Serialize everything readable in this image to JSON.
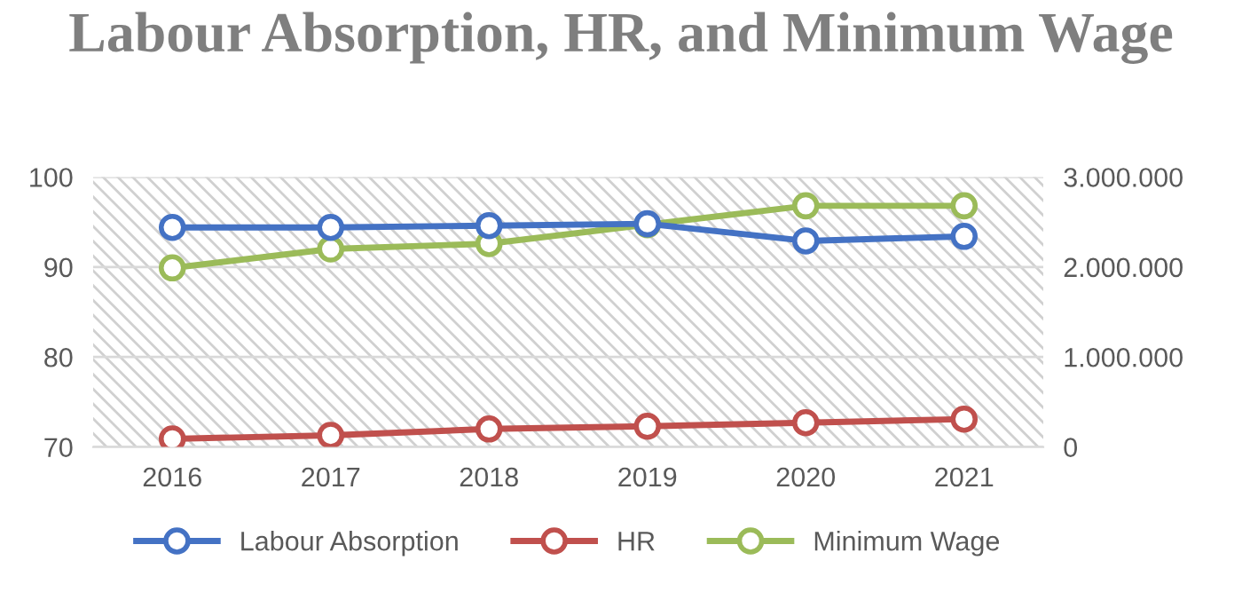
{
  "chart_data": {
    "type": "line",
    "title": "Labour Absorption, HR, and Minimum Wage",
    "categories": [
      "2016",
      "2017",
      "2018",
      "2019",
      "2020",
      "2021"
    ],
    "series": [
      {
        "name": "Labour Absorption",
        "color": "#4472c4",
        "values": [
          94.4,
          94.4,
          94.6,
          94.8,
          92.9,
          93.4
        ]
      },
      {
        "name": "HR",
        "color": "#c0504d",
        "values": [
          70.9,
          71.3,
          72.0,
          72.3,
          72.7,
          73.1
        ]
      },
      {
        "name": "Minimum Wage",
        "color": "#9bbb59",
        "axis": "y2",
        "values": [
          1990000,
          2200000,
          2260000,
          2470000,
          2680000,
          2680000
        ]
      }
    ],
    "ylim": [
      70,
      100
    ],
    "yticks": [
      70,
      80,
      90,
      100
    ],
    "y2lim": [
      0,
      3000000
    ],
    "y2ticks": [
      {
        "value": 0,
        "label": "0"
      },
      {
        "value": 1000000,
        "label": "1.000.000"
      },
      {
        "value": 2000000,
        "label": "2.000.000"
      },
      {
        "value": 3000000,
        "label": "3.000.000"
      }
    ],
    "grid": true,
    "legend": "bottom",
    "marker": "circle",
    "line_style": "solid"
  }
}
